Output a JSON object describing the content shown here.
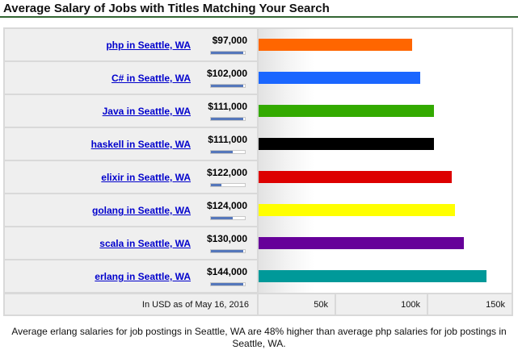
{
  "header": {
    "title": "Average Salary of Jobs with Titles Matching Your Search"
  },
  "rows": [
    {
      "label": "php in Seattle, WA",
      "salary": "$97,000",
      "mini_fill": 0.95
    },
    {
      "label": "C# in Seattle, WA",
      "salary": "$102,000",
      "mini_fill": 0.95
    },
    {
      "label": "Java in Seattle, WA",
      "salary": "$111,000",
      "mini_fill": 0.95
    },
    {
      "label": "haskell in Seattle, WA",
      "salary": "$111,000",
      "mini_fill": 0.65
    },
    {
      "label": "elixir in Seattle, WA",
      "salary": "$122,000",
      "mini_fill": 0.3
    },
    {
      "label": "golang in Seattle, WA",
      "salary": "$124,000",
      "mini_fill": 0.65
    },
    {
      "label": "scala in Seattle, WA",
      "salary": "$130,000",
      "mini_fill": 0.95
    },
    {
      "label": "erlang in Seattle, WA",
      "salary": "$144,000",
      "mini_fill": 0.95
    }
  ],
  "footer": {
    "as_of": "In USD as of May 16, 2016"
  },
  "ticks": [
    "50k",
    "100k",
    "150k"
  ],
  "summary": "Average erlang salaries for job postings in Seattle, WA are 48% higher than average php salaries for job postings in Seattle, WA.",
  "colors": {
    "php": "#ff6600",
    "C#": "#1a66ff",
    "Java": "#33aa00",
    "haskell": "#000000",
    "elixir": "#dd0000",
    "golang": "#ffff00",
    "scala": "#660099",
    "erlang": "#009999",
    "link": "#0000cc",
    "header_rule": "#336633"
  },
  "chart_data": {
    "type": "bar",
    "categories": [
      "php in Seattle, WA",
      "C# in Seattle, WA",
      "Java in Seattle, WA",
      "haskell in Seattle, WA",
      "elixir in Seattle, WA",
      "golang in Seattle, WA",
      "scala in Seattle, WA",
      "erlang in Seattle, WA"
    ],
    "values": [
      97000,
      102000,
      111000,
      111000,
      122000,
      124000,
      130000,
      144000
    ],
    "title": "Average Salary of Jobs with Titles Matching Your Search",
    "xlabel": "",
    "ylabel": "",
    "xlim": [
      0,
      160000
    ],
    "tick_values": [
      50000,
      100000,
      150000
    ],
    "tick_labels": [
      "50k",
      "100k",
      "150k"
    ],
    "orientation": "horizontal",
    "grid": false,
    "legend": "none"
  }
}
